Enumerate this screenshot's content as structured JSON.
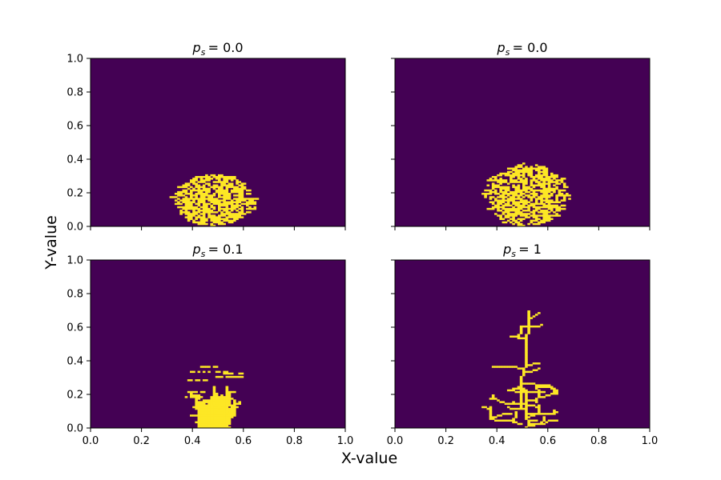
{
  "chart_data": {
    "type": "heatmap",
    "xlabel": "X-value",
    "ylabel": "Y-value",
    "colors": {
      "background": "#440154",
      "cluster": "#fde725"
    },
    "grid": false,
    "colorbar": false,
    "shared_x": true,
    "shared_y": true,
    "panels": [
      {
        "title_prefix": "p",
        "title_subscript": "s",
        "title_value": "= 0.0",
        "xlim": [
          0,
          1
        ],
        "ylim": [
          0,
          1
        ],
        "xticks": [
          "0.0",
          "0.2",
          "0.4",
          "0.6",
          "0.8",
          "1.0"
        ],
        "yticks": [
          "0.0",
          "0.2",
          "0.4",
          "0.6",
          "0.8",
          "1.0"
        ],
        "cluster": {
          "kind": "compact",
          "center_x": 0.48,
          "base_y": 0.0,
          "extent_x": [
            0.34,
            0.62
          ],
          "extent_y": [
            0.0,
            0.31
          ],
          "seed": 11
        }
      },
      {
        "title_prefix": "p",
        "title_subscript": "s",
        "title_value": "= 0.0",
        "xlim": [
          0,
          1
        ],
        "ylim": [
          0,
          1
        ],
        "xticks": [
          "0.0",
          "0.2",
          "0.4",
          "0.6",
          "0.8",
          "1.0"
        ],
        "yticks": [
          "0.0",
          "0.2",
          "0.4",
          "0.6",
          "0.8",
          "1.0"
        ],
        "cluster": {
          "kind": "compact",
          "center_x": 0.51,
          "base_y": 0.0,
          "extent_x": [
            0.37,
            0.65
          ],
          "extent_y": [
            0.0,
            0.37
          ],
          "seed": 23
        }
      },
      {
        "title_prefix": "p",
        "title_subscript": "s",
        "title_value": "= 0.1",
        "xlim": [
          0,
          1
        ],
        "ylim": [
          0,
          1
        ],
        "xticks": [
          "0.0",
          "0.2",
          "0.4",
          "0.6",
          "0.8",
          "1.0"
        ],
        "yticks": [
          "0.0",
          "0.2",
          "0.4",
          "0.6",
          "0.8",
          "1.0"
        ],
        "cluster": {
          "kind": "sparse",
          "center_x": 0.49,
          "base_y": 0.0,
          "extent_x": [
            0.33,
            0.68
          ],
          "extent_y": [
            0.0,
            0.41
          ],
          "seed": 37
        }
      },
      {
        "title_prefix": "p",
        "title_subscript": "s",
        "title_value": "= 1",
        "xlim": [
          0,
          1
        ],
        "ylim": [
          0,
          1
        ],
        "xticks": [
          "0.0",
          "0.2",
          "0.4",
          "0.6",
          "0.8",
          "1.0"
        ],
        "yticks": [
          "0.0",
          "0.2",
          "0.4",
          "0.6",
          "0.8",
          "1.0"
        ],
        "cluster": {
          "kind": "dendritic",
          "center_x": 0.51,
          "base_y": 0.0,
          "extent_x": [
            0.34,
            0.71
          ],
          "extent_y": [
            0.0,
            0.69
          ],
          "seed": 53
        }
      }
    ]
  }
}
